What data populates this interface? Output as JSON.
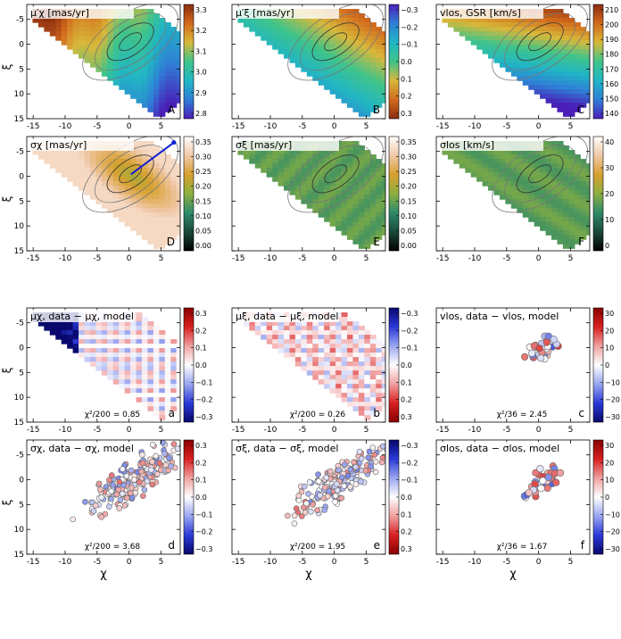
{
  "figure": {
    "xlabel": "χ",
    "ylabel": "ξ",
    "x_ticks": [
      -15,
      -10,
      -5,
      0,
      5
    ],
    "y_ticks": [
      -5,
      0,
      5,
      10,
      15
    ],
    "xlim": [
      -16,
      8
    ],
    "ylim": [
      -8,
      15
    ]
  },
  "panels": [
    {
      "title": "μ′χ [mas/yr]",
      "letter": "A",
      "stat": "",
      "kind": "map-seq",
      "cmap": [
        "#4a1fb8",
        "#2f7fd6",
        "#21b6c4",
        "#3fc48a",
        "#d8b83a",
        "#d26a1c",
        "#8c2d10"
      ],
      "ticks": [
        "3.3",
        "3.2",
        "3.1",
        "3.0",
        "2.9",
        "2.8"
      ]
    },
    {
      "title": "μ′ξ [mas/yr]",
      "letter": "B",
      "stat": "",
      "kind": "map-seq",
      "cmap": [
        "#8c2d10",
        "#d26a1c",
        "#d8b83a",
        "#3fc48a",
        "#21b6c4",
        "#2f7fd6",
        "#4a1fb8"
      ],
      "ticks": [
        "−0.3",
        "−0.2",
        "−0.1",
        "0.0",
        "0.1",
        "0.2",
        "0.3"
      ]
    },
    {
      "title": "vlos, GSR [km/s]",
      "letter": "C",
      "stat": "",
      "kind": "map-seq",
      "cmap": [
        "#4a1fb8",
        "#2f7fd6",
        "#21b6c4",
        "#3fc48a",
        "#d8b83a",
        "#d26a1c",
        "#8c2d10"
      ],
      "ticks": [
        "210",
        "200",
        "190",
        "180",
        "170",
        "160",
        "150",
        "140"
      ]
    },
    {
      "title": "σχ [mas/yr]",
      "letter": "D",
      "stat": "",
      "kind": "map-seq",
      "cmap": [
        "#000000",
        "#1a4a3a",
        "#2e8a6a",
        "#8cb040",
        "#d8a030",
        "#f0c8a8",
        "#ffffff"
      ],
      "ticks": [
        "0.35",
        "0.30",
        "0.25",
        "0.20",
        "0.15",
        "0.10",
        "0.05",
        "0.00"
      ]
    },
    {
      "title": "σξ [mas/yr]",
      "letter": "E",
      "stat": "",
      "kind": "map-seq",
      "cmap": [
        "#000000",
        "#1a4a3a",
        "#2e8a6a",
        "#8cb040",
        "#d8a030",
        "#f0c8a8",
        "#ffffff"
      ],
      "ticks": [
        "0.35",
        "0.30",
        "0.25",
        "0.20",
        "0.15",
        "0.10",
        "0.05",
        "0.00"
      ]
    },
    {
      "title": "σlos [km/s]",
      "letter": "F",
      "stat": "",
      "kind": "map-seq",
      "cmap": [
        "#000000",
        "#1a4a3a",
        "#2e8a6a",
        "#8cb040",
        "#d8a030",
        "#f0c8a8",
        "#ffffff"
      ],
      "ticks": [
        "40",
        "30",
        "20",
        "10",
        "0"
      ]
    },
    {
      "title": "μχ, data − μχ, model",
      "letter": "a",
      "stat": "χ²/200 = 0.85",
      "kind": "map-div",
      "cmap": [
        "#08086e",
        "#2a3ad8",
        "#9aa6f0",
        "#ffffff",
        "#f0a0a0",
        "#d82020",
        "#8a0000"
      ],
      "ticks": [
        "0.3",
        "0.2",
        "0.1",
        "0.0",
        "−0.1",
        "−0.2",
        "−0.3"
      ]
    },
    {
      "title": "μξ, data − μξ, model",
      "letter": "b",
      "stat": "χ²/200 = 0.26",
      "kind": "map-div",
      "cmap": [
        "#8a0000",
        "#d82020",
        "#f0a0a0",
        "#ffffff",
        "#9aa6f0",
        "#2a3ad8",
        "#08086e"
      ],
      "ticks": [
        "−0.3",
        "−0.2",
        "−0.1",
        "0.0",
        "0.1",
        "0.2",
        "0.3"
      ]
    },
    {
      "title": "vlos, data − vlos, model",
      "letter": "c",
      "stat": "χ²/36 = 2.45",
      "kind": "points-small",
      "cmap": [
        "#08086e",
        "#2a3ad8",
        "#9aa6f0",
        "#ffffff",
        "#f0a0a0",
        "#d82020",
        "#8a0000"
      ],
      "ticks": [
        "30",
        "20",
        "10",
        "0",
        "−10",
        "−20",
        "−30"
      ]
    },
    {
      "title": "σχ, data − σχ, model",
      "letter": "d",
      "stat": "χ²/200 = 3.68",
      "kind": "points-large",
      "cmap": [
        "#08086e",
        "#2a3ad8",
        "#9aa6f0",
        "#ffffff",
        "#f0a0a0",
        "#d82020",
        "#8a0000"
      ],
      "ticks": [
        "0.3",
        "0.2",
        "0.1",
        "0.0",
        "−0.1",
        "−0.2",
        "−0.3"
      ]
    },
    {
      "title": "σξ, data − σξ, model",
      "letter": "e",
      "stat": "χ²/200 = 1.95",
      "kind": "points-large",
      "cmap": [
        "#8a0000",
        "#d82020",
        "#f0a0a0",
        "#ffffff",
        "#9aa6f0",
        "#2a3ad8",
        "#08086e"
      ],
      "ticks": [
        "−0.3",
        "−0.2",
        "−0.1",
        "0.0",
        "0.1",
        "0.2",
        "0.3"
      ]
    },
    {
      "title": "σlos, data − σlos, model",
      "letter": "f",
      "stat": "χ²/36 = 1.67",
      "kind": "points-small",
      "cmap": [
        "#08086e",
        "#2a3ad8",
        "#9aa6f0",
        "#ffffff",
        "#f0a0a0",
        "#d82020",
        "#8a0000"
      ],
      "ticks": [
        "30",
        "20",
        "10",
        "0",
        "−10",
        "−20",
        "−30"
      ]
    }
  ],
  "chart_data": {
    "type": "heatmap",
    "title": "",
    "xlabel": "χ",
    "ylabel": "ξ",
    "xlim": [
      -16,
      8
    ],
    "ylim": [
      -8,
      15
    ],
    "series": [
      {
        "name": "μ′χ [mas/yr]",
        "colorbar_range": [
          2.75,
          3.35
        ]
      },
      {
        "name": "μ′ξ [mas/yr]",
        "colorbar_range": [
          -0.3,
          0.3
        ]
      },
      {
        "name": "vlos, GSR [km/s]",
        "colorbar_range": [
          135,
          215
        ]
      },
      {
        "name": "σχ [mas/yr]",
        "colorbar_range": [
          0.0,
          0.37
        ]
      },
      {
        "name": "σξ [mas/yr]",
        "colorbar_range": [
          0.0,
          0.37
        ]
      },
      {
        "name": "σlos [km/s]",
        "colorbar_range": [
          0,
          45
        ]
      },
      {
        "name": "μχ, data − μχ, model",
        "colorbar_range": [
          -0.3,
          0.3
        ],
        "chi2": "χ²/200 = 0.85"
      },
      {
        "name": "μξ, data − μξ, model",
        "colorbar_range": [
          -0.3,
          0.3
        ],
        "chi2": "χ²/200 = 0.26"
      },
      {
        "name": "vlos, data − vlos, model",
        "colorbar_range": [
          -35,
          35
        ],
        "chi2": "χ²/36 = 2.45"
      },
      {
        "name": "σχ, data − σχ, model",
        "colorbar_range": [
          -0.3,
          0.3
        ],
        "chi2": "χ²/200 = 3.68"
      },
      {
        "name": "σξ, data − σξ, model",
        "colorbar_range": [
          -0.3,
          0.3
        ],
        "chi2": "χ²/200 = 1.95"
      },
      {
        "name": "σlos, data − σlos, model",
        "colorbar_range": [
          -35,
          35
        ],
        "chi2": "χ²/36 = 1.67"
      }
    ]
  }
}
